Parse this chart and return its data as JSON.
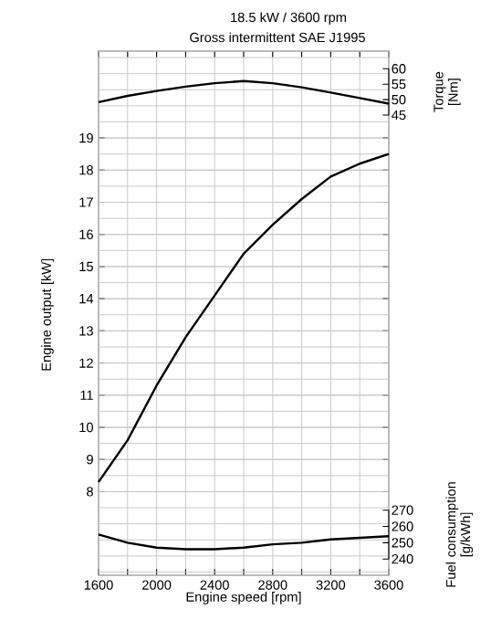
{
  "chart_data": {
    "type": "line",
    "title": "18.5 kW / 3600 rpm",
    "subtitle": "Gross intermittent SAE J1995",
    "xlabel": "Engine speed [rpm]",
    "ylabel": "Engine output [kW]",
    "y2label": "Torque [Nm]",
    "y3label": "Fuel consumption [g/kWh]",
    "x": [
      1600,
      1800,
      2000,
      2200,
      2400,
      2600,
      2800,
      3000,
      3200,
      3400,
      3600
    ],
    "xlim": [
      1600,
      3600
    ],
    "xticks": [
      1600,
      {
        "value": 1800,
        "label": null
      },
      2000,
      {
        "value": 2200,
        "label": null
      },
      2400,
      {
        "value": 2600,
        "label": null
      },
      2800,
      {
        "value": 3000,
        "label": null
      },
      3200,
      {
        "value": 3400,
        "label": null
      },
      3600
    ],
    "ylim": [
      5.4,
      21.7
    ],
    "yticks": [
      8,
      9,
      10,
      11,
      12,
      13,
      14,
      15,
      16,
      17,
      18,
      19
    ],
    "y2lim": [
      -104,
      65.7
    ],
    "y2ticks": [
      45,
      50,
      55,
      60
    ],
    "y3lim": [
      230,
      552
    ],
    "y3ticks": [
      240,
      250,
      260,
      270
    ],
    "grid": true,
    "series": [
      {
        "color": "#000000",
        "axis": "y",
        "values": [
          8.3,
          9.6,
          11.3,
          12.8,
          14.1,
          15.4,
          16.3,
          17.1,
          17.8,
          18.2,
          18.5
        ]
      },
      {
        "color": "#000000",
        "axis": "y2",
        "values": [
          49.2,
          51.2,
          52.8,
          54.2,
          55.3,
          56,
          55.3,
          54,
          52.3,
          50.5,
          48.7
        ]
      },
      {
        "color": "#000000",
        "axis": "y3",
        "values": [
          255,
          250,
          247,
          246,
          246,
          247,
          249,
          250,
          252,
          253,
          254
        ]
      }
    ]
  }
}
